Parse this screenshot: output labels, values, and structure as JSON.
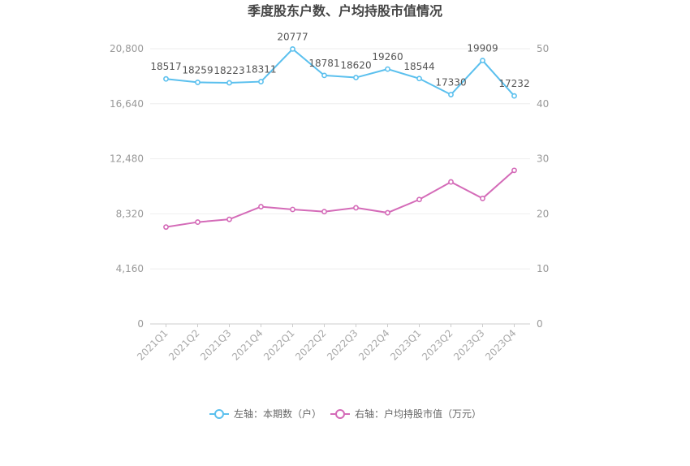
{
  "chart_data": {
    "type": "line",
    "title": "季度股东户数、户均持股市值情况",
    "categories": [
      "2021Q1",
      "2021Q2",
      "2021Q3",
      "2021Q4",
      "2022Q1",
      "2022Q2",
      "2022Q3",
      "2022Q4",
      "2023Q1",
      "2023Q2",
      "2023Q3",
      "2023Q4"
    ],
    "left_axis": {
      "ticks": [
        "0",
        "4,160",
        "8,320",
        "12,480",
        "16,640",
        "20,800"
      ],
      "range": [
        0,
        20800
      ]
    },
    "right_axis": {
      "ticks": [
        "0",
        "10",
        "20",
        "30",
        "40",
        "50"
      ],
      "range": [
        0,
        50
      ]
    },
    "series": [
      {
        "name": "左轴：本期数（户）",
        "axis": "left",
        "color": "#5bc0ee",
        "values": [
          18517,
          18259,
          18223,
          18311,
          20777,
          18781,
          18620,
          19260,
          18544,
          17330,
          19909,
          17232
        ],
        "labels": [
          "18517",
          "18259",
          "18223",
          "18311",
          "20777",
          "18781",
          "18620",
          "19260",
          "18544",
          "17330",
          "19909",
          "17232"
        ]
      },
      {
        "name": "右轴：户均持股市值（万元）",
        "axis": "right",
        "color": "#d46bb8",
        "values": [
          17.6,
          18.5,
          19.0,
          21.3,
          20.8,
          20.4,
          21.1,
          20.2,
          22.6,
          25.8,
          22.8,
          27.9
        ]
      }
    ],
    "grid": true,
    "legend_position": "bottom"
  }
}
